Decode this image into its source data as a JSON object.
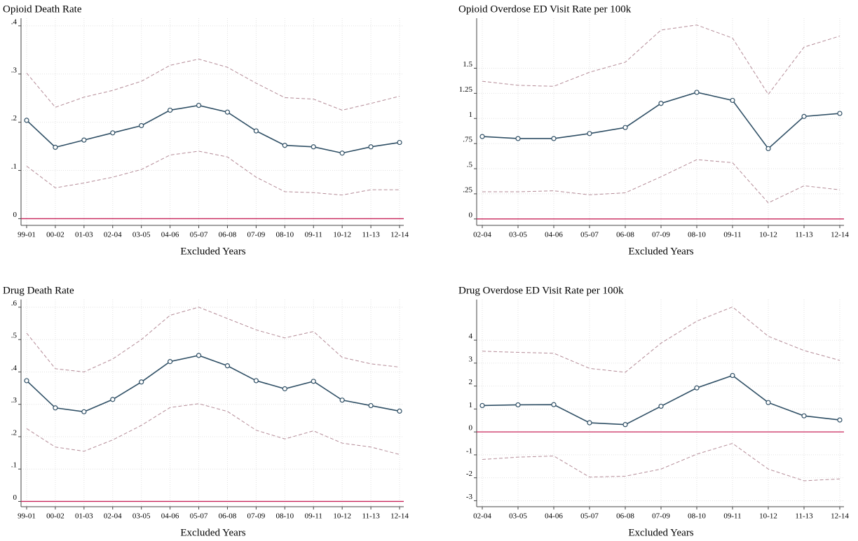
{
  "chart_data": [
    {
      "type": "line",
      "title": "Opioid Death Rate",
      "xlabel": "Excluded Years",
      "categories": [
        "99-01",
        "00-02",
        "01-03",
        "02-04",
        "03-05",
        "04-06",
        "05-07",
        "06-08",
        "07-09",
        "08-10",
        "09-11",
        "10-12",
        "11-13",
        "12-14"
      ],
      "series": [
        {
          "color": "#2f4f65",
          "style": "solid",
          "marker": true,
          "values": [
            0.204,
            0.148,
            0.163,
            0.178,
            0.193,
            0.225,
            0.235,
            0.221,
            0.182,
            0.152,
            0.149,
            0.136,
            0.149,
            0.158
          ]
        },
        {
          "color": "#b58c98",
          "style": "dashed",
          "marker": false,
          "values": [
            0.302,
            0.231,
            0.252,
            0.266,
            0.285,
            0.318,
            0.331,
            0.314,
            0.281,
            0.251,
            0.248,
            0.225,
            0.239,
            0.254
          ]
        },
        {
          "color": "#b58c98",
          "style": "dashed",
          "marker": false,
          "values": [
            0.109,
            0.064,
            0.074,
            0.086,
            0.102,
            0.132,
            0.14,
            0.128,
            0.086,
            0.056,
            0.054,
            0.049,
            0.06,
            0.06
          ]
        }
      ],
      "hline": {
        "value": 0,
        "color": "#c8245a"
      },
      "ylim": [
        -0.011,
        0.41
      ],
      "yticks": [
        0,
        {
          "value": 0.1,
          "label": ".1"
        },
        {
          "value": 0.2,
          "label": ".2"
        },
        {
          "value": 0.3,
          "label": ".3"
        },
        {
          "value": 0.4,
          "label": ".4"
        }
      ],
      "grid": true
    },
    {
      "type": "line",
      "title": "Opioid Overdose ED Visit Rate per 100k",
      "xlabel": "Excluded Years",
      "categories": [
        "02-04",
        "03-05",
        "04-06",
        "05-07",
        "06-08",
        "07-09",
        "08-10",
        "09-11",
        "10-12",
        "11-13",
        "12-14"
      ],
      "series": [
        {
          "color": "#2f4f65",
          "style": "solid",
          "marker": true,
          "values": [
            0.82,
            0.8,
            0.8,
            0.85,
            0.91,
            1.15,
            1.26,
            1.18,
            0.7,
            1.02,
            1.05
          ]
        },
        {
          "color": "#b58c98",
          "style": "dashed",
          "marker": false,
          "values": [
            1.37,
            1.33,
            1.32,
            1.46,
            1.56,
            1.88,
            1.93,
            1.8,
            1.24,
            1.71,
            1.82
          ]
        },
        {
          "color": "#b58c98",
          "style": "dashed",
          "marker": false,
          "values": [
            0.27,
            0.27,
            0.28,
            0.24,
            0.26,
            0.42,
            0.59,
            0.56,
            0.16,
            0.33,
            0.29
          ]
        }
      ],
      "hline": {
        "value": 0,
        "color": "#c8245a"
      },
      "ylim": [
        -0.05,
        1.97
      ],
      "yticks": [
        0,
        {
          "value": 0.25,
          "label": ".25"
        },
        {
          "value": 0.5,
          "label": ".5"
        },
        {
          "value": 0.75,
          "label": ".75"
        },
        1,
        1.25,
        1.5
      ],
      "grid": true
    },
    {
      "type": "line",
      "title": "Drug Death Rate",
      "xlabel": "Excluded Years",
      "categories": [
        "99-01",
        "00-02",
        "01-03",
        "02-04",
        "03-05",
        "04-06",
        "05-07",
        "06-08",
        "07-09",
        "08-10",
        "09-11",
        "10-12",
        "11-13",
        "12-14"
      ],
      "series": [
        {
          "color": "#2f4f65",
          "style": "solid",
          "marker": true,
          "values": [
            0.373,
            0.289,
            0.277,
            0.315,
            0.369,
            0.432,
            0.451,
            0.419,
            0.373,
            0.348,
            0.371,
            0.313,
            0.296,
            0.279
          ]
        },
        {
          "color": "#b58c98",
          "style": "dashed",
          "marker": false,
          "values": [
            0.52,
            0.41,
            0.4,
            0.44,
            0.5,
            0.575,
            0.6,
            0.565,
            0.53,
            0.505,
            0.525,
            0.445,
            0.425,
            0.415
          ]
        },
        {
          "color": "#b58c98",
          "style": "dashed",
          "marker": false,
          "values": [
            0.225,
            0.168,
            0.155,
            0.19,
            0.235,
            0.29,
            0.302,
            0.278,
            0.22,
            0.193,
            0.218,
            0.18,
            0.168,
            0.145
          ]
        }
      ],
      "hline": {
        "value": 0,
        "color": "#c8245a"
      },
      "ylim": [
        -0.012,
        0.615
      ],
      "yticks": [
        0,
        {
          "value": 0.1,
          "label": ".1"
        },
        {
          "value": 0.2,
          "label": ".2"
        },
        {
          "value": 0.3,
          "label": ".3"
        },
        {
          "value": 0.4,
          "label": ".4"
        },
        {
          "value": 0.5,
          "label": ".5"
        },
        {
          "value": 0.6,
          "label": ".6"
        }
      ],
      "grid": true
    },
    {
      "type": "line",
      "title": "Drug Overdose ED Visit Rate per 100k",
      "xlabel": "Excluded Years",
      "categories": [
        "02-04",
        "03-05",
        "04-06",
        "05-07",
        "06-08",
        "07-09",
        "08-10",
        "09-11",
        "10-12",
        "11-13",
        "12-14"
      ],
      "series": [
        {
          "color": "#2f4f65",
          "style": "solid",
          "marker": true,
          "values": [
            1.15,
            1.18,
            1.19,
            0.4,
            0.32,
            1.12,
            1.92,
            2.46,
            1.28,
            0.7,
            0.52
          ]
        },
        {
          "color": "#b58c98",
          "style": "dashed",
          "marker": false,
          "values": [
            3.52,
            3.47,
            3.43,
            2.77,
            2.6,
            3.87,
            4.83,
            5.45,
            4.17,
            3.55,
            3.12
          ]
        },
        {
          "color": "#b58c98",
          "style": "dashed",
          "marker": false,
          "values": [
            -1.2,
            -1.1,
            -1.05,
            -1.97,
            -1.93,
            -1.62,
            -0.97,
            -0.5,
            -1.62,
            -2.13,
            -2.05
          ]
        }
      ],
      "hline": {
        "value": 0,
        "color": "#c8245a"
      },
      "ylim": [
        -3.2,
        5.65
      ],
      "yticks": [
        -3,
        -2,
        -1,
        0,
        1,
        2,
        3,
        4
      ],
      "grid": true
    }
  ]
}
